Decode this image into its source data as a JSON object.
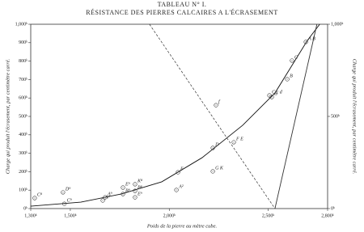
{
  "chart_data": {
    "type": "scatter",
    "title": "TABLEAU N° I.",
    "subtitle": "RÉSISTANCE DES PIERRES CALCAIRES A L'ÉCRASEMENT",
    "x_label": "Poids de la pierre au mètre cube.",
    "y_label": "Charge qui produit l'écrasement, par centimètre carré.",
    "y2_label": "Charge qui produit l'écrasement, par centimètre carré.",
    "xlim": [
      1300,
      2800
    ],
    "ylim": [
      0,
      1000
    ],
    "y2lim": [
      0,
      1000
    ],
    "xticks": [
      {
        "value": 1300,
        "label": "1,300ᵏ"
      },
      {
        "value": 1500,
        "label": "1,500ᵏ"
      },
      {
        "value": 2000,
        "label": "2,000ᵏ"
      },
      {
        "value": 2500,
        "label": "2,500ᵏ"
      },
      {
        "value": 2800,
        "label": "2,800ᵏ"
      }
    ],
    "yticks": [
      {
        "value": 0,
        "label": "0ᵏ"
      },
      {
        "value": 100,
        "label": "100ᵏ"
      },
      {
        "value": 200,
        "label": "200ᵏ"
      },
      {
        "value": 300,
        "label": "300ᵏ"
      },
      {
        "value": 400,
        "label": "400ᵏ"
      },
      {
        "value": 500,
        "label": "500ᵏ"
      },
      {
        "value": 600,
        "label": "600ᵏ"
      },
      {
        "value": 700,
        "label": "700ᵏ"
      },
      {
        "value": 800,
        "label": "800ᵏ"
      },
      {
        "value": 900,
        "label": "900ᵏ"
      },
      {
        "value": 1000,
        "label": "1,000ᵏ"
      }
    ],
    "y2ticks": [
      {
        "value": 0,
        "label": "0ᵏ"
      },
      {
        "value": 500,
        "label": "500ᵏ"
      },
      {
        "value": 1000,
        "label": "1,000ᵏ"
      }
    ],
    "series": [
      {
        "style": "curve",
        "color": "#111",
        "x": [
          1300,
          1553,
          1758,
          1962,
          2166,
          2371,
          2534,
          2698,
          2760
        ],
        "values": [
          13,
          35,
          79,
          145,
          276,
          452,
          627,
          912,
          1000
        ]
      },
      {
        "style": "dashed",
        "color": "#333",
        "x": [
          1900,
          2534
        ],
        "values": [
          1000,
          0
        ]
      },
      {
        "style": "solid",
        "color": "#333",
        "x": [
          2534,
          2746
        ],
        "values": [
          0,
          1000
        ]
      },
      {
        "style": "points",
        "color": "#333",
        "x": [
          1320,
          1463,
          1470,
          1664,
          1676,
          1766,
          1766,
          1827,
          1827,
          1827,
          2036,
          2044,
          2220,
          2220,
          2326,
          2236,
          2506,
          2518,
          2596,
          2620,
          2690
        ],
        "values": [
          57,
          88,
          26,
          44,
          61,
          79,
          114,
          61,
          96,
          132,
          101,
          197,
          202,
          329,
          360,
          561,
          614,
          605,
          702,
          803,
          904
        ],
        "labels": [
          "C⁸",
          "D⁹",
          "C⁹",
          "A²",
          "A⁹",
          "B⁹",
          "E⁹",
          "E⁹",
          "B⁸",
          "K⁸",
          "A²",
          "F",
          "G K",
          "D",
          "F E",
          "f",
          "C c d",
          "B",
          "B",
          "C",
          "A B"
        ]
      }
    ]
  }
}
